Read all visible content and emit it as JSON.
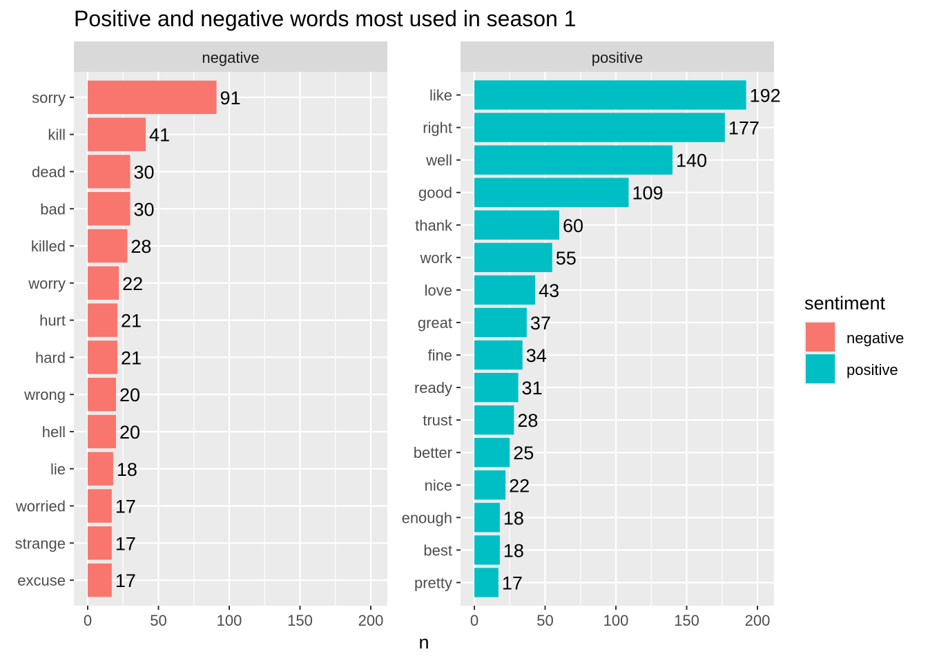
{
  "chart_data": {
    "type": "bar",
    "orientation": "horizontal",
    "title": "Positive and negative words most used in season 1",
    "xlabel": "n",
    "ylabel": "",
    "xlim": [
      0,
      210
    ],
    "x_ticks": [
      0,
      50,
      100,
      150,
      200
    ],
    "grid": true,
    "legend": {
      "title": "sentiment",
      "placement": "right",
      "entries": [
        {
          "label": "negative",
          "color": "#F8766D"
        },
        {
          "label": "positive",
          "color": "#00BFC4"
        }
      ]
    },
    "panels": [
      {
        "name": "negative",
        "color": "#F8766D",
        "categories": [
          "sorry",
          "kill",
          "dead",
          "bad",
          "killed",
          "worry",
          "hurt",
          "hard",
          "wrong",
          "hell",
          "lie",
          "worried",
          "strange",
          "excuse"
        ],
        "values": [
          91,
          41,
          30,
          30,
          28,
          22,
          21,
          21,
          20,
          20,
          18,
          17,
          17,
          17
        ]
      },
      {
        "name": "positive",
        "color": "#00BFC4",
        "categories": [
          "like",
          "right",
          "well",
          "good",
          "thank",
          "work",
          "love",
          "great",
          "fine",
          "ready",
          "trust",
          "better",
          "nice",
          "enough",
          "best",
          "pretty"
        ],
        "values": [
          192,
          177,
          140,
          109,
          60,
          55,
          43,
          37,
          34,
          31,
          28,
          25,
          22,
          18,
          18,
          17
        ]
      }
    ]
  }
}
